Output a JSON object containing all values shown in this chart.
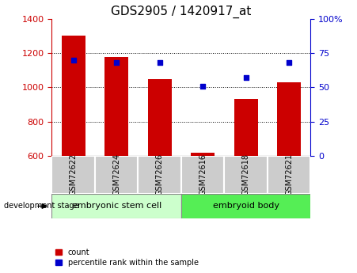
{
  "title": "GDS2905 / 1420917_at",
  "categories": [
    "GSM72622",
    "GSM72624",
    "GSM72626",
    "GSM72616",
    "GSM72618",
    "GSM72621"
  ],
  "count_values": [
    1302,
    1180,
    1050,
    615,
    930,
    1030
  ],
  "percentile_values": [
    70,
    68,
    68,
    51,
    57,
    68
  ],
  "ylim_left": [
    600,
    1400
  ],
  "ylim_right": [
    0,
    100
  ],
  "left_ticks": [
    600,
    800,
    1000,
    1200,
    1400
  ],
  "right_ticks": [
    0,
    25,
    50,
    75,
    100
  ],
  "right_tick_labels": [
    "0",
    "25",
    "50",
    "75",
    "100%"
  ],
  "bar_color": "#cc0000",
  "dot_color": "#0000cc",
  "bar_width": 0.55,
  "group1_label": "embryonic stem cell",
  "group2_label": "embryoid body",
  "group1_indices": [
    0,
    1,
    2
  ],
  "group2_indices": [
    3,
    4,
    5
  ],
  "stage_label": "development stage",
  "legend_count_label": "count",
  "legend_percentile_label": "percentile rank within the sample",
  "grid_color": "#000000",
  "group1_color": "#ccffcc",
  "group2_color": "#55ee55",
  "tick_area_color": "#cccccc",
  "title_fontsize": 11,
  "cat_fontsize": 7,
  "group_fontsize": 8,
  "legend_fontsize": 7
}
